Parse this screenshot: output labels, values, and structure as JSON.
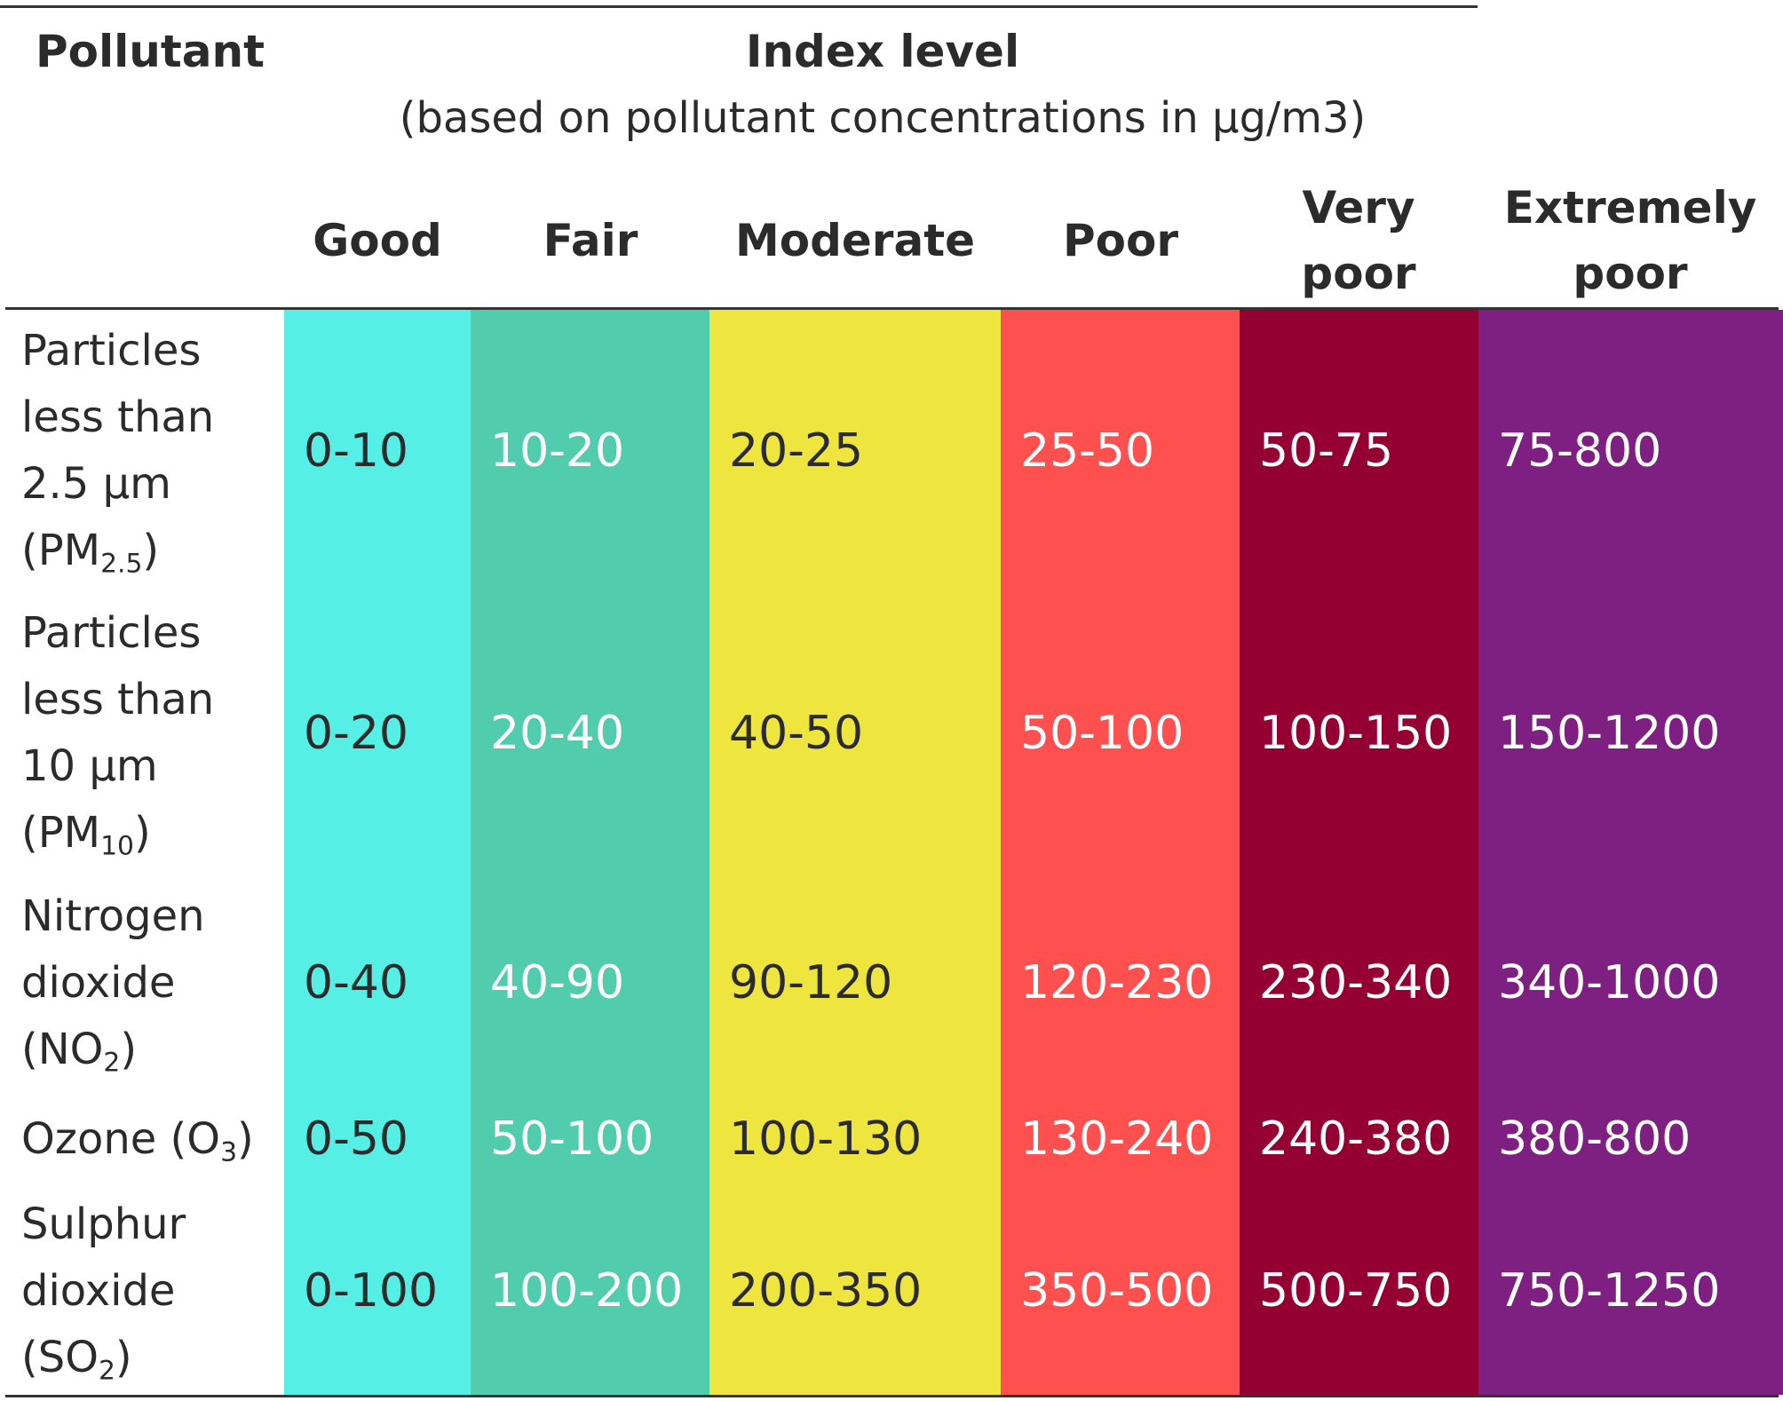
{
  "header": {
    "pollutant_label": "Pollutant",
    "index_title": "Index level",
    "index_subtitle": "(based on pollutant concentrations in µg/m3)"
  },
  "levels": [
    {
      "name_line1": "Good",
      "name_line2": "",
      "color": "#55EFE6"
    },
    {
      "name_line1": "Fair",
      "name_line2": "",
      "color": "#51CCAD"
    },
    {
      "name_line1": "Moderate",
      "name_line2": "",
      "color": "#EEE53F"
    },
    {
      "name_line1": "Poor",
      "name_line2": "",
      "color": "#FF5050"
    },
    {
      "name_line1": "Very",
      "name_line2": "poor",
      "color": "#950032"
    },
    {
      "name_line1": "Extremely",
      "name_line2": "poor",
      "color": "#7D2081"
    }
  ],
  "rows": [
    {
      "name": [
        "Particles",
        "less than",
        "2.5 µm"
      ],
      "formula": {
        "pre": "(PM",
        "sub": "2.5",
        "post": ")"
      },
      "values": [
        "0-10",
        "10-20",
        "20-25",
        "25-50",
        "50-75",
        "75-800"
      ]
    },
    {
      "name": [
        "Particles",
        "less than",
        "10 µm"
      ],
      "formula": {
        "pre": "(PM",
        "sub": "10",
        "post": ")"
      },
      "values": [
        "0-20",
        "20-40",
        "40-50",
        "50-100",
        "100-150",
        "150-1200"
      ]
    },
    {
      "name": [
        "Nitrogen",
        "dioxide"
      ],
      "formula": {
        "pre": "(NO",
        "sub": "2",
        "post": ")"
      },
      "values": [
        "0-40",
        "40-90",
        "90-120",
        "120-230",
        "230-340",
        "340-1000"
      ]
    },
    {
      "name": [],
      "formula": {
        "pre": "Ozone (O",
        "sub": "3",
        "post": ")"
      },
      "values": [
        "0-50",
        "50-100",
        "100-130",
        "130-240",
        "240-380",
        "380-800"
      ]
    },
    {
      "name": [
        "Sulphur",
        "dioxide"
      ],
      "formula": {
        "pre": "(SO",
        "sub": "2",
        "post": ")"
      },
      "values": [
        "0-100",
        "100-200",
        "200-350",
        "350-500",
        "500-750",
        "750-1250"
      ]
    }
  ]
}
